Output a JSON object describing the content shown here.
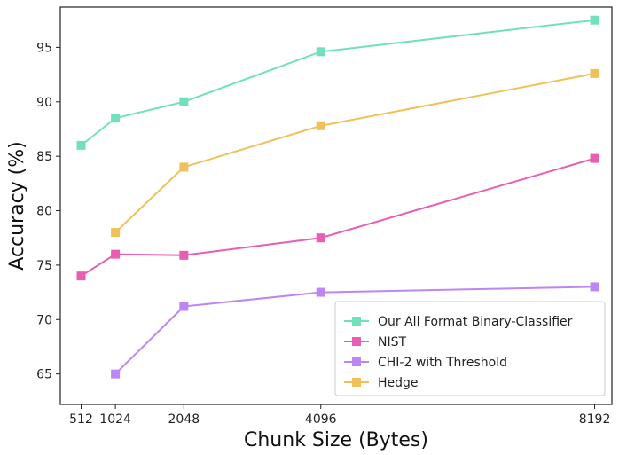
{
  "chart_data": {
    "type": "line",
    "title": "",
    "xlabel": "Chunk Size (Bytes)",
    "ylabel": "Accuracy (%)",
    "x": [
      512,
      1024,
      2048,
      4096,
      8192
    ],
    "x_tick_labels": [
      "512",
      "1024",
      "2048",
      "4096",
      "8192"
    ],
    "xlim": [
      200,
      8450
    ],
    "ylim": [
      62.2,
      98.7
    ],
    "y_ticks": [
      65,
      70,
      75,
      80,
      85,
      90,
      95
    ],
    "y_tick_labels": [
      "65",
      "70",
      "75",
      "80",
      "85",
      "90",
      "95"
    ],
    "grid": false,
    "legend_position": "lower-right",
    "marker": "square",
    "series": [
      {
        "name": "Our All Format Binary-Classifier",
        "color": "#72e0bd",
        "values": [
          86.0,
          88.5,
          90.0,
          94.6,
          97.5
        ]
      },
      {
        "name": "NIST",
        "color": "#e85eb2",
        "values": [
          74.0,
          76.0,
          75.9,
          77.5,
          84.8
        ]
      },
      {
        "name": "CHI-2 with Threshold",
        "color": "#bd86f2",
        "values": [
          null,
          65.0,
          71.2,
          72.5,
          73.0
        ]
      },
      {
        "name": "Hedge",
        "color": "#f0c15a",
        "values": [
          null,
          78.0,
          84.0,
          87.8,
          92.6
        ]
      }
    ]
  }
}
